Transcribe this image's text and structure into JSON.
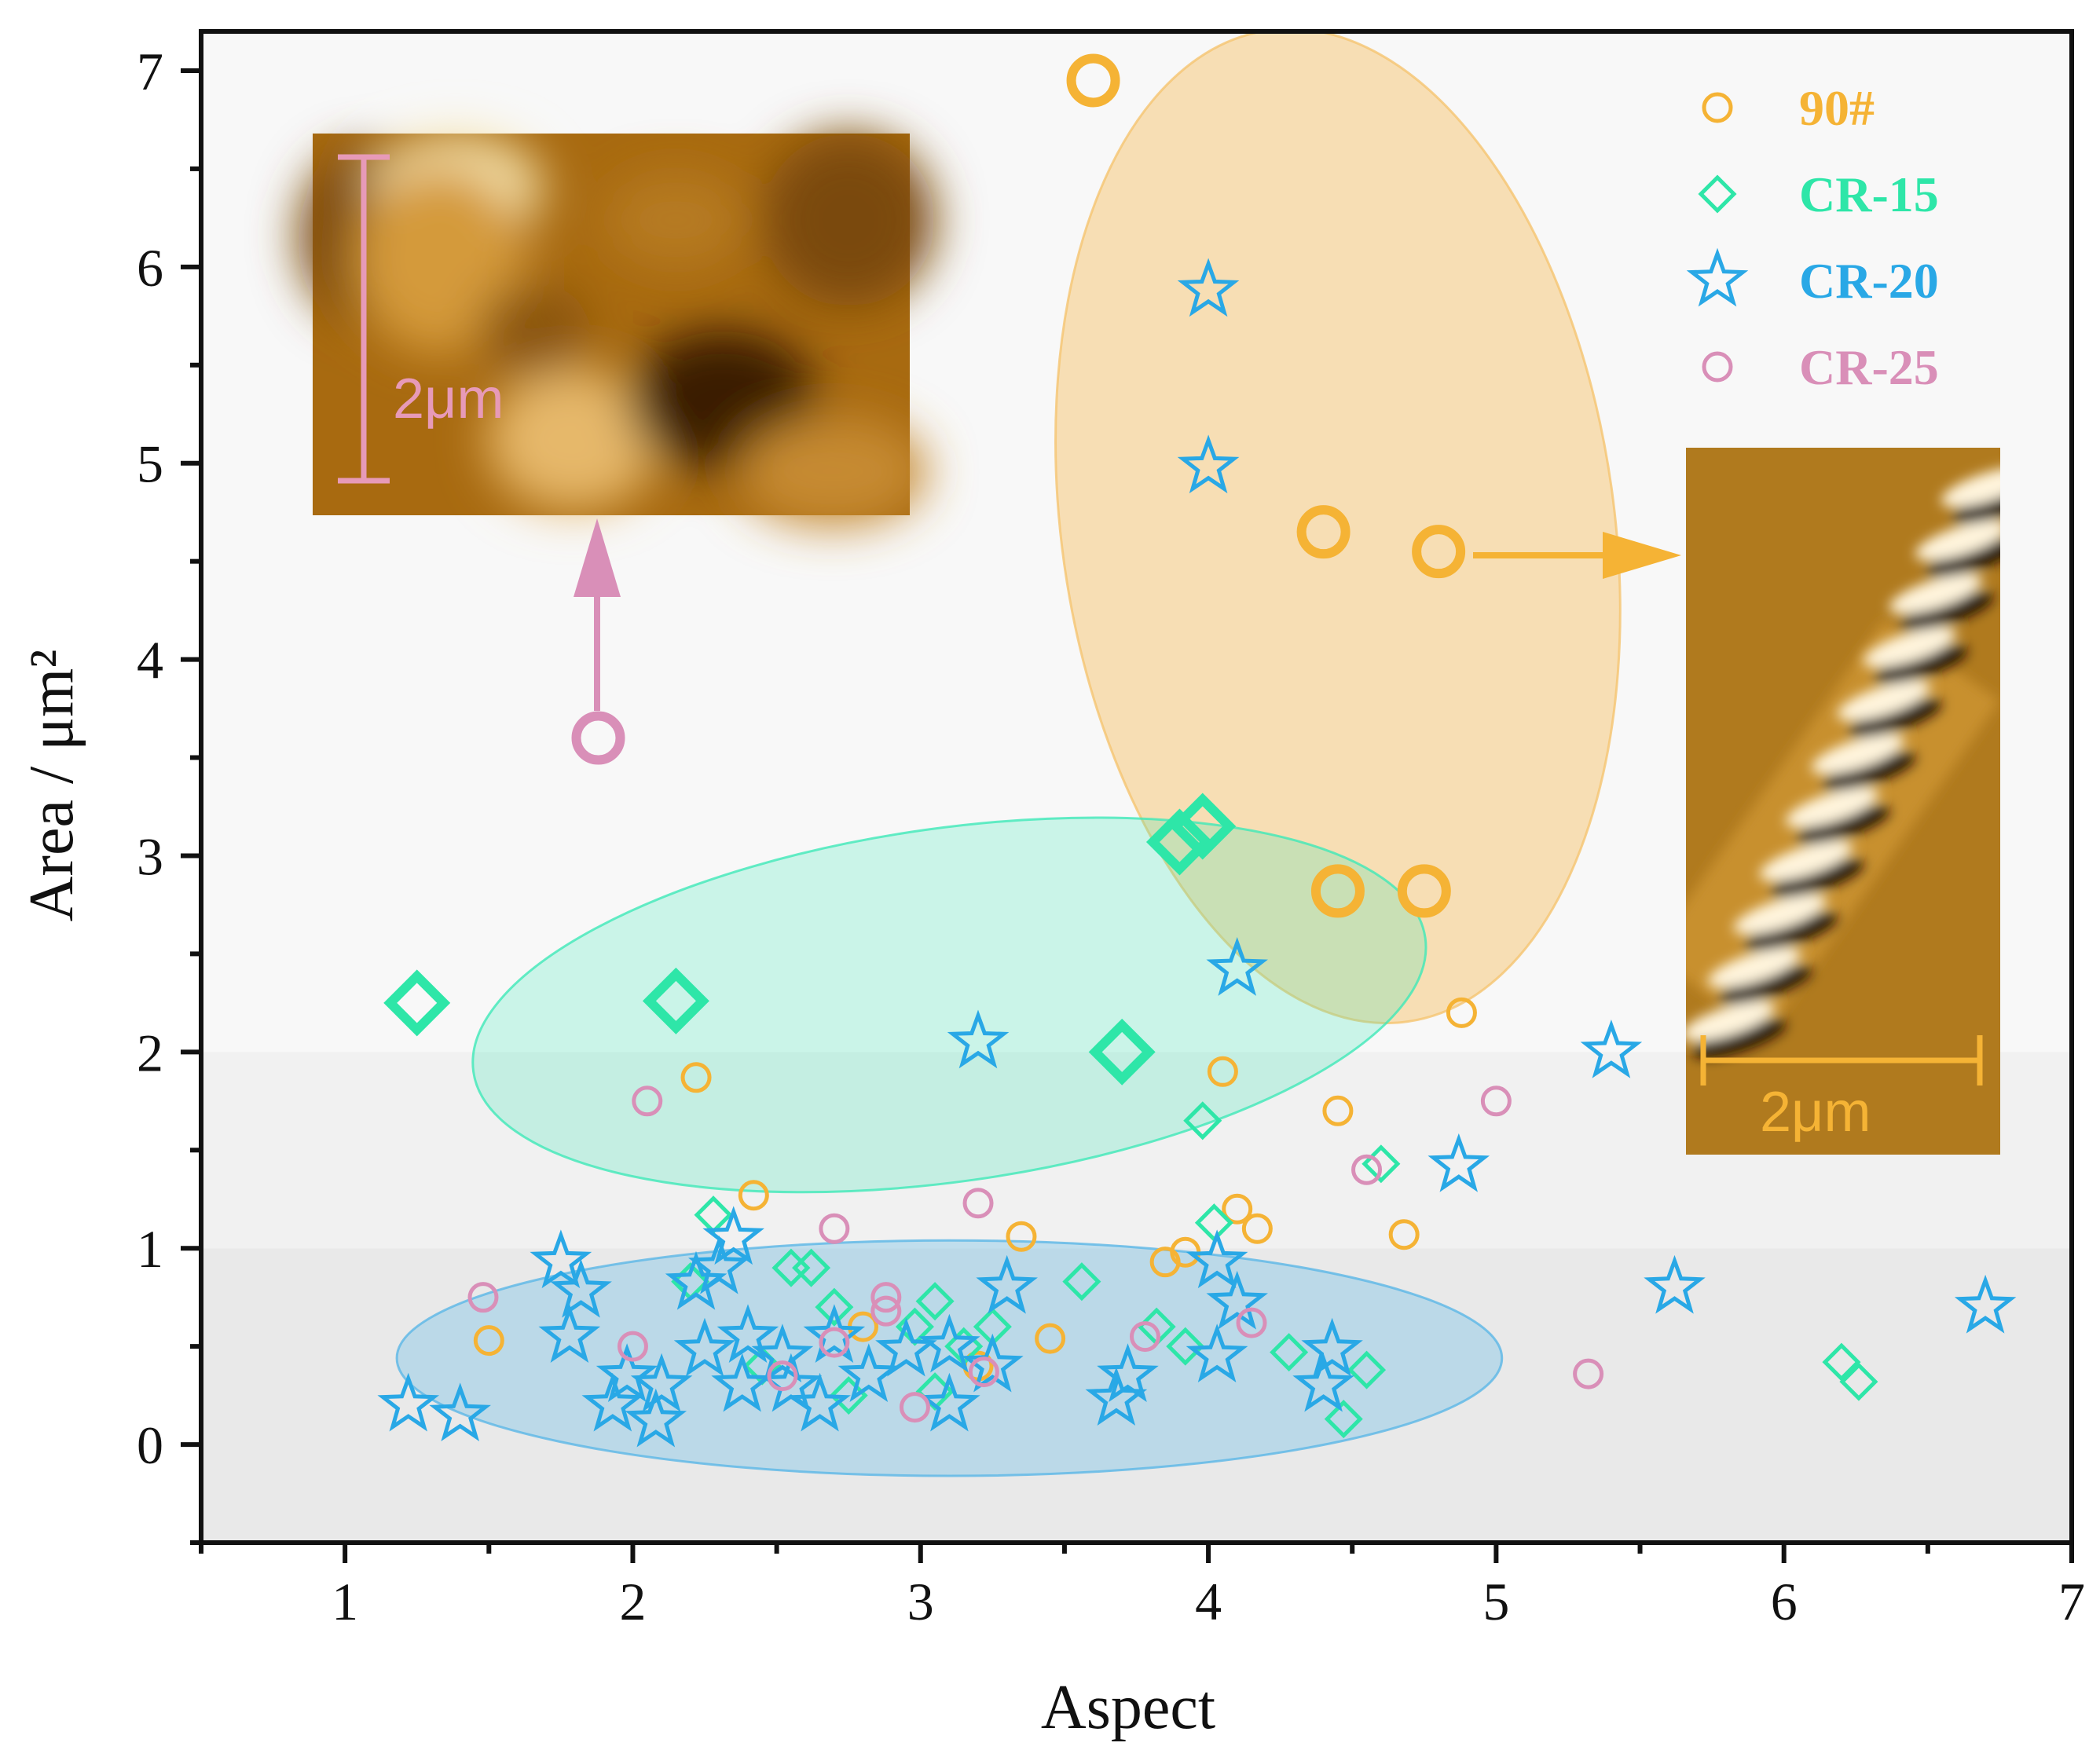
{
  "chart_data": {
    "type": "scatter",
    "title": "",
    "xlabel": "Aspect",
    "ylabel": "Area / μm²",
    "xlim": [
      0.5,
      7
    ],
    "ylim": [
      -0.5,
      7.2
    ],
    "xticks": [
      "1",
      "2",
      "3",
      "4",
      "5",
      "6",
      "7"
    ],
    "yticks": [
      "0",
      "1",
      "2",
      "3",
      "4",
      "5",
      "6",
      "7"
    ],
    "background_bands": [
      {
        "from": -0.5,
        "to": 1,
        "color": "#e9e9e9"
      },
      {
        "from": 1,
        "to": 2,
        "color": "#f1f1f1"
      },
      {
        "from": 2,
        "to": 7.2,
        "color": "#f8f8f8"
      }
    ],
    "series": [
      {
        "name": "90#",
        "marker": "circle",
        "color": "#f5b335",
        "points": [
          [
            3.6,
            6.95,
            1
          ],
          [
            4.4,
            4.65,
            1
          ],
          [
            4.8,
            4.55,
            1
          ],
          [
            4.45,
            2.82,
            1
          ],
          [
            4.75,
            2.82,
            1
          ],
          [
            2.22,
            1.87,
            0
          ],
          [
            4.05,
            1.9,
            0
          ],
          [
            4.88,
            2.2,
            0
          ],
          [
            4.45,
            1.7,
            0
          ],
          [
            4.1,
            1.2,
            0
          ],
          [
            4.17,
            1.1,
            0
          ],
          [
            4.68,
            1.07,
            0
          ],
          [
            2.42,
            1.27,
            0
          ],
          [
            3.35,
            1.06,
            0
          ],
          [
            3.85,
            0.93,
            0
          ],
          [
            3.92,
            0.98,
            0
          ],
          [
            1.5,
            0.53,
            0
          ],
          [
            3.45,
            0.54,
            0
          ],
          [
            2.8,
            0.6,
            0
          ],
          [
            3.2,
            0.4,
            0
          ]
        ]
      },
      {
        "name": "CR-15",
        "marker": "diamond",
        "color": "#2ee6a8",
        "points": [
          [
            1.25,
            2.25,
            1
          ],
          [
            2.15,
            2.26,
            1
          ],
          [
            3.7,
            2.0,
            1
          ],
          [
            3.9,
            3.07,
            1
          ],
          [
            3.98,
            3.15,
            1
          ],
          [
            3.98,
            1.65,
            0
          ],
          [
            4.6,
            1.43,
            0
          ],
          [
            2.28,
            1.17,
            0
          ],
          [
            4.02,
            1.13,
            0
          ],
          [
            2.55,
            0.9,
            0
          ],
          [
            2.62,
            0.9,
            0
          ],
          [
            3.05,
            0.73,
            0
          ],
          [
            3.56,
            0.83,
            0
          ],
          [
            2.2,
            0.83,
            0
          ],
          [
            2.98,
            0.6,
            0
          ],
          [
            3.25,
            0.6,
            0
          ],
          [
            3.82,
            0.6,
            0
          ],
          [
            3.92,
            0.5,
            0
          ],
          [
            4.28,
            0.47,
            0
          ],
          [
            4.55,
            0.38,
            0
          ],
          [
            4.47,
            0.13,
            0
          ],
          [
            6.2,
            0.42,
            0
          ],
          [
            6.26,
            0.32,
            0
          ],
          [
            2.75,
            0.25,
            0
          ],
          [
            3.05,
            0.27,
            0
          ],
          [
            2.45,
            0.4,
            0
          ],
          [
            3.15,
            0.5,
            0
          ],
          [
            2.7,
            0.7,
            0
          ]
        ]
      },
      {
        "name": "CR-20",
        "marker": "star",
        "color": "#29a8e6",
        "points": [
          [
            4.0,
            5.88,
            0
          ],
          [
            4.0,
            4.98,
            0
          ],
          [
            4.1,
            2.42,
            0
          ],
          [
            3.2,
            2.05,
            0
          ],
          [
            5.4,
            2.0,
            0
          ],
          [
            4.87,
            1.42,
            0
          ],
          [
            5.62,
            0.8,
            0
          ],
          [
            6.7,
            0.7,
            0
          ],
          [
            4.03,
            0.93,
            0
          ],
          [
            4.1,
            0.72,
            0
          ],
          [
            4.03,
            0.45,
            0
          ],
          [
            4.43,
            0.48,
            0
          ],
          [
            4.4,
            0.3,
            0
          ],
          [
            3.72,
            0.35,
            0
          ],
          [
            3.68,
            0.23,
            0
          ],
          [
            3.3,
            0.8,
            0
          ],
          [
            3.25,
            0.4,
            0
          ],
          [
            2.35,
            1.05,
            0
          ],
          [
            2.22,
            0.82,
            0
          ],
          [
            2.3,
            0.9,
            0
          ],
          [
            1.75,
            0.93,
            0
          ],
          [
            1.82,
            0.78,
            0
          ],
          [
            1.78,
            0.55,
            0
          ],
          [
            1.22,
            0.2,
            0
          ],
          [
            1.4,
            0.15,
            0
          ],
          [
            1.93,
            0.2,
            0
          ],
          [
            2.08,
            0.12,
            0
          ],
          [
            2.1,
            0.3,
            0
          ],
          [
            2.25,
            0.48,
            0
          ],
          [
            2.38,
            0.3,
            0
          ],
          [
            2.52,
            0.45,
            0
          ],
          [
            2.65,
            0.2,
            0
          ],
          [
            2.7,
            0.55,
            0
          ],
          [
            2.82,
            0.35,
            0
          ],
          [
            2.95,
            0.48,
            0
          ],
          [
            3.1,
            0.2,
            0
          ],
          [
            3.1,
            0.5,
            0
          ],
          [
            1.98,
            0.35,
            0
          ],
          [
            2.55,
            0.3,
            0
          ],
          [
            2.4,
            0.55,
            0
          ]
        ]
      },
      {
        "name": "CR-25",
        "marker": "circle",
        "color": "#d98fb8",
        "points": [
          [
            1.88,
            3.6,
            1
          ],
          [
            2.05,
            1.75,
            0
          ],
          [
            5.0,
            1.75,
            0
          ],
          [
            4.55,
            1.4,
            0
          ],
          [
            3.2,
            1.23,
            0
          ],
          [
            2.7,
            1.1,
            0
          ],
          [
            1.48,
            0.75,
            0
          ],
          [
            2.88,
            0.75,
            0
          ],
          [
            2.88,
            0.68,
            0
          ],
          [
            4.15,
            0.62,
            0
          ],
          [
            3.78,
            0.55,
            0
          ],
          [
            2.0,
            0.5,
            0
          ],
          [
            2.7,
            0.52,
            0
          ],
          [
            2.52,
            0.35,
            0
          ],
          [
            3.22,
            0.37,
            0
          ],
          [
            2.98,
            0.19,
            0
          ],
          [
            5.32,
            0.36,
            0
          ]
        ]
      }
    ],
    "clusters": [
      {
        "cx": 4.45,
        "cy": 4.68,
        "rx": 0.96,
        "ry": 2.55,
        "rot_deg": -8,
        "color": "#f5c470",
        "opacity": 0.5
      },
      {
        "cx": 3.1,
        "cy": 2.24,
        "rx": 1.67,
        "ry": 0.9,
        "rot_deg": -8,
        "color": "#3ee8b8",
        "opacity": 0.25
      },
      {
        "cx": 3.1,
        "cy": 0.44,
        "rx": 1.92,
        "ry": 0.6,
        "rot_deg": 0,
        "color": "#5bb6e6",
        "opacity": 0.32
      }
    ],
    "insets": [
      {
        "name": "90# AFM image",
        "scale_label": "2μm",
        "color": "#f5b335"
      },
      {
        "name": "CR-25 AFM image",
        "scale_label": "2μm",
        "color": "#d98fb8"
      }
    ]
  }
}
